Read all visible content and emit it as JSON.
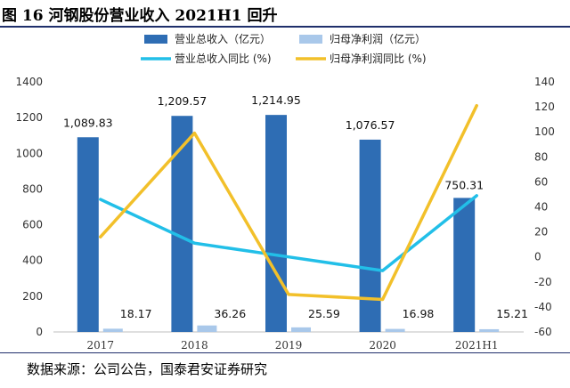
{
  "header": {
    "title": "图 16  河钢股份营业收入 2021H1 回升"
  },
  "footer": {
    "source": "数据来源：公司公告，国泰君安证券研究"
  },
  "colors": {
    "revenue_bar": "#2e6db4",
    "profit_bar": "#a9c8ea",
    "revenue_yoy_line": "#22bfe8",
    "profit_yoy_line": "#f2c02a"
  },
  "chart_data": {
    "type": "bar",
    "categories": [
      "2017",
      "2018",
      "2019",
      "2020",
      "2021H1"
    ],
    "series": [
      {
        "name": "营业总收入（亿元）",
        "kind": "bar",
        "axis": "left",
        "values": [
          1089.83,
          1209.57,
          1214.95,
          1076.57,
          750.31
        ],
        "labels": [
          "1,089.83",
          "1,209.57",
          "1,214.95",
          "1,076.57",
          "750.31"
        ]
      },
      {
        "name": "归母净利润（亿元）",
        "kind": "bar",
        "axis": "left",
        "values": [
          18.17,
          36.26,
          25.59,
          16.98,
          15.21
        ],
        "labels": [
          "18.17",
          "36.26",
          "25.59",
          "16.98",
          "15.21"
        ]
      },
      {
        "name": "营业总收入同比 (%)",
        "kind": "line",
        "axis": "right",
        "values": [
          46,
          11,
          0,
          -11,
          49
        ]
      },
      {
        "name": "归母净利润同比 (%)",
        "kind": "line",
        "axis": "right",
        "values": [
          16,
          99,
          -30,
          -34,
          121
        ]
      }
    ],
    "y_left": {
      "min": 0,
      "max": 1400,
      "ticks": [
        "0",
        "200",
        "400",
        "600",
        "800",
        "1000",
        "1200",
        "1400"
      ]
    },
    "y_right": {
      "min": -60,
      "max": 140,
      "ticks": [
        "-60",
        "-40",
        "-20",
        "0",
        "20",
        "40",
        "60",
        "80",
        "100",
        "120",
        "140"
      ]
    },
    "grid": false,
    "legend_position": "top"
  }
}
